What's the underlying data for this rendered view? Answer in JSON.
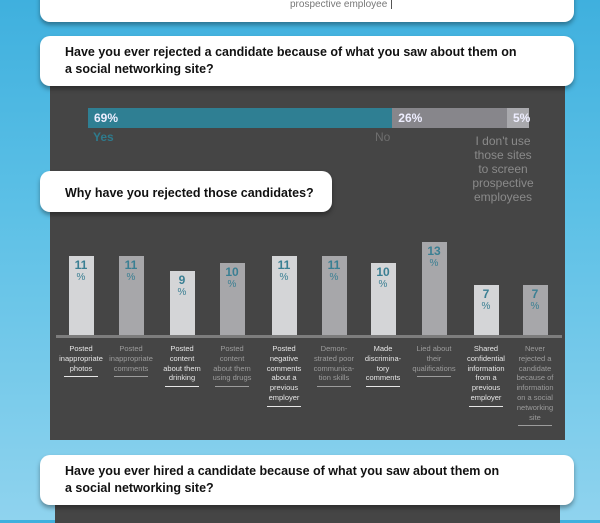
{
  "top_card": {
    "tail_text": "prospective employee"
  },
  "q1": {
    "question_line1": "Have you ever rejected a candidate because of what you saw about them on",
    "question_line2": "a social networking site?"
  },
  "q2": {
    "question": "Why have you rejected those candidates?"
  },
  "q3": {
    "question_line1": "Have you ever hired a candidate because of what you saw about them on",
    "question_line2": "a social networking site?"
  },
  "colors": {
    "background_top": "#3fb0de",
    "panel": "#454545",
    "yes": "#2f7f93",
    "no": "#87868b",
    "none": "#a9a9ad",
    "bar_light": "#d4d5d7",
    "bar_dark": "#a7a7aa",
    "value_text": "#3a7f93"
  },
  "chart_data": [
    {
      "type": "bar",
      "orientation": "horizontal-stacked",
      "title": "Have you ever rejected a candidate because of what you saw about them on a social networking site?",
      "categories": [
        "Yes",
        "No",
        "I don't use those sites to screen prospective employees"
      ],
      "values": [
        69,
        26,
        5
      ],
      "value_labels": [
        "69%",
        "26%",
        "5%"
      ],
      "unit": "%",
      "segment_label_lines": [
        [
          "Yes"
        ],
        [
          "No"
        ],
        [
          "I don't use",
          "those sites",
          "to screen",
          "prospective",
          "employees"
        ]
      ]
    },
    {
      "type": "bar",
      "title": "Why have you rejected those candidates?",
      "categories": [
        "Posted inappropriate photos",
        "Posted inappropriate comments",
        "Posted content about them drinking",
        "Posted content about them using drugs",
        "Posted negative comments about a previous employer",
        "Demonstrated poor communication skills",
        "Made discriminatory comments",
        "Lied about their qualifications",
        "Shared confidential information from a previous employer",
        "Never rejected a candidate because of information on a social networking site"
      ],
      "category_label_lines": [
        [
          "Posted",
          "inappropriate",
          "photos"
        ],
        [
          "Posted",
          "inappropriate",
          "comments"
        ],
        [
          "Posted",
          "content",
          "about them",
          "drinking"
        ],
        [
          "Posted",
          "content",
          "about them",
          "using drugs"
        ],
        [
          "Posted",
          "negative",
          "comments",
          "about a",
          "previous",
          "employer"
        ],
        [
          "Demon-",
          "strated poor",
          "communica-",
          "tion skills"
        ],
        [
          "Made",
          "discrimina-",
          "tory",
          "comments"
        ],
        [
          "Lied about",
          "their",
          "qualifications"
        ],
        [
          "Shared",
          "confidential",
          "information",
          "from a",
          "previous",
          "employer"
        ],
        [
          "Never",
          "rejected a",
          "candidate",
          "because of",
          "information",
          "on a social",
          "networking",
          "site"
        ]
      ],
      "values": [
        11,
        11,
        9,
        10,
        11,
        11,
        10,
        13,
        7,
        7
      ],
      "unit": "%",
      "xlabel": "",
      "ylabel": "",
      "ylim": [
        0,
        13
      ],
      "grid": false,
      "legend": "none"
    }
  ]
}
